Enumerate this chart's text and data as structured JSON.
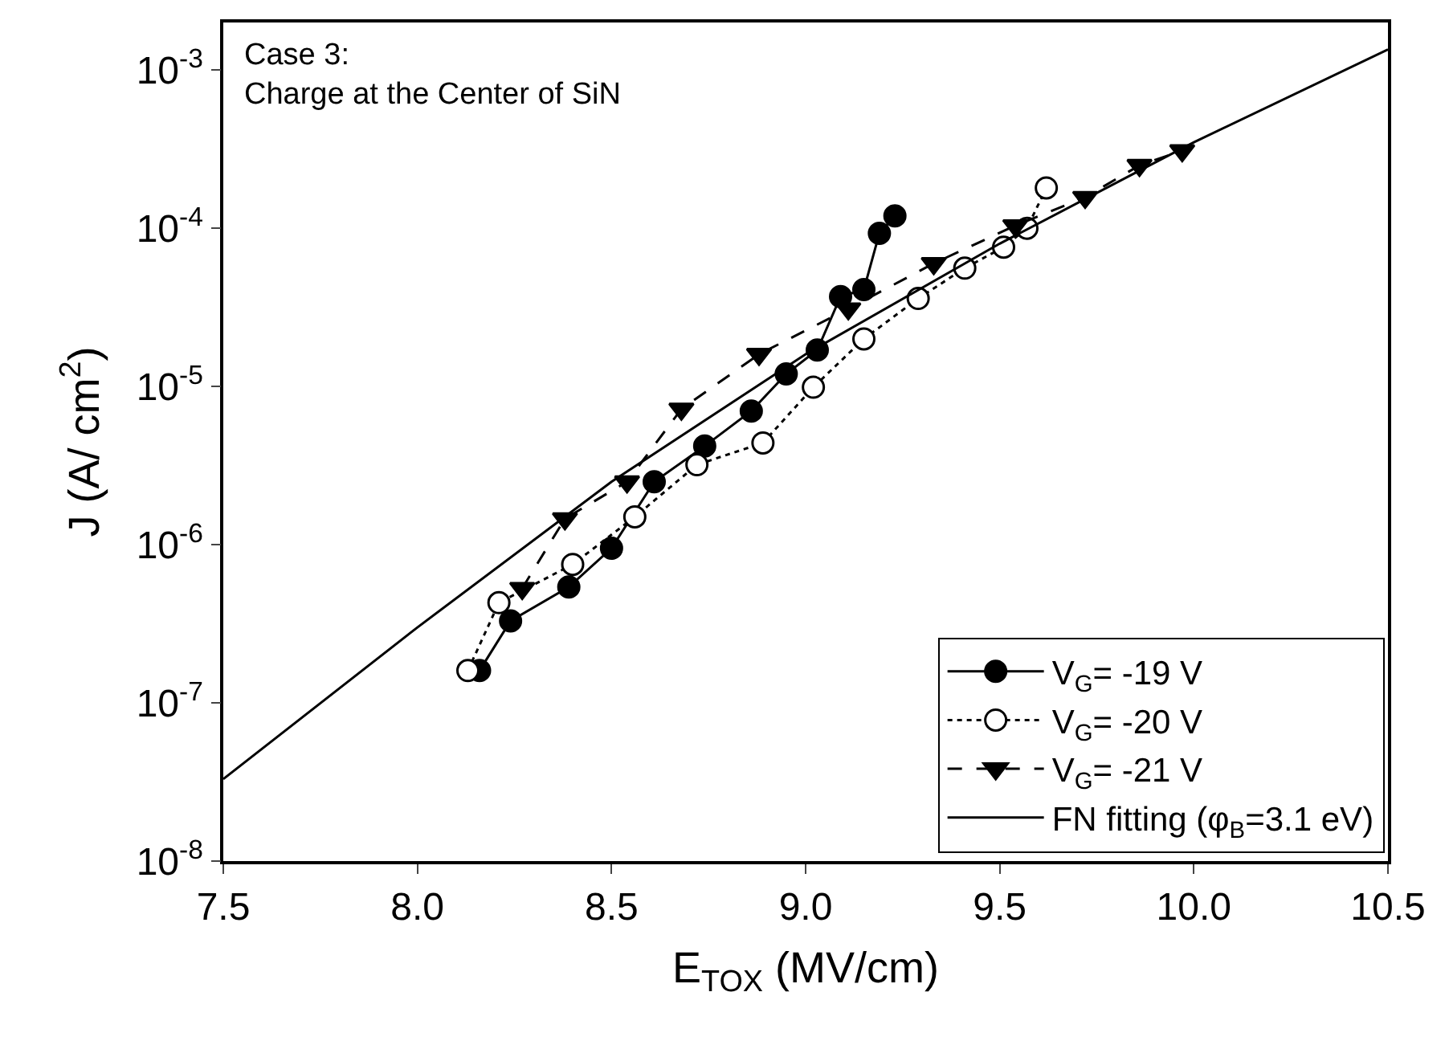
{
  "chart_data": {
    "type": "line",
    "xlabel": "E$_{TOX}$ (MV/cm)",
    "ylabel": "J (A/ cm$^{2}$)",
    "annotations": [
      "Case 3:\nCharge at the Center of SiN"
    ],
    "xlim": [
      7.5,
      10.5
    ],
    "xticks": [
      7.5,
      {
        "value": 8,
        "label": "8.0"
      },
      8.5,
      {
        "value": 9,
        "label": "9.0"
      },
      9.5,
      {
        "value": 10,
        "label": "10.0"
      },
      10.5
    ],
    "ylim": [
      1e-08,
      0.002
    ],
    "yticks": [
      {
        "value": 1e-08,
        "label": "10$^{-8}$"
      },
      {
        "value": 1e-07,
        "label": "10$^{-7}$"
      },
      {
        "value": 1e-06,
        "label": "10$^{-6}$"
      },
      {
        "value": 1e-05,
        "label": "10$^{-5}$"
      },
      {
        "value": 0.0001,
        "label": "10$^{-4}$"
      },
      {
        "value": 0.001,
        "label": "10$^{-3}$"
      }
    ],
    "log": "y",
    "legend": "bottom right",
    "series": [
      {
        "name": "V$_{G}$= -19 V",
        "color": "#000000",
        "marker": "circle",
        "line_style": "solid",
        "x": [
          8.16,
          8.24,
          8.39,
          8.5,
          8.61,
          8.74,
          8.86,
          8.95,
          9.03,
          9.09,
          9.15,
          9.19,
          9.23
        ],
        "values": [
          1.6e-07,
          3.3e-07,
          5.4e-07,
          9.5e-07,
          2.5e-06,
          4.2e-06,
          7e-06,
          1.2e-05,
          1.7e-05,
          3.7e-05,
          4.1e-05,
          9.3e-05,
          0.00012
        ]
      },
      {
        "name": "V$_{G}$= -20 V",
        "color": "#000000",
        "marker": "circle",
        "line_style": "dotted",
        "x": [
          8.13,
          8.21,
          8.4,
          8.56,
          8.72,
          8.89,
          9.02,
          9.15,
          9.29,
          9.41,
          9.51,
          9.57,
          9.62
        ],
        "values": [
          1.6e-07,
          4.3e-07,
          7.5e-07,
          1.5e-06,
          3.2e-06,
          4.4e-06,
          9.9e-06,
          2e-05,
          3.6e-05,
          5.6e-05,
          7.6e-05,
          0.0001,
          0.00018
        ]
      },
      {
        "name": "V$_{G}$= -21 V",
        "color": "#000000",
        "marker": "triangle",
        "line_style": "dashed",
        "x": [
          8.27,
          8.38,
          8.54,
          8.68,
          8.88,
          9.11,
          9.33,
          9.54,
          9.72,
          9.86,
          9.97
        ],
        "values": [
          5.3e-07,
          1.46e-06,
          2.5e-06,
          7.2e-06,
          1.6e-05,
          3.1e-05,
          6e-05,
          0.000104,
          0.000157,
          0.00025,
          0.00031
        ]
      },
      {
        "name": "FN fitting (φ$_{B}$=3.1 eV)",
        "color": "#000000",
        "marker": "none",
        "line_style": "solid",
        "x": [
          7.5,
          8.0,
          8.5,
          9.0,
          9.5,
          10.0,
          10.5
        ],
        "values": [
          3.3e-08,
          3e-07,
          2.5e-06,
          1.6e-05,
          8e-05,
          0.00035,
          0.00135
        ]
      }
    ]
  }
}
